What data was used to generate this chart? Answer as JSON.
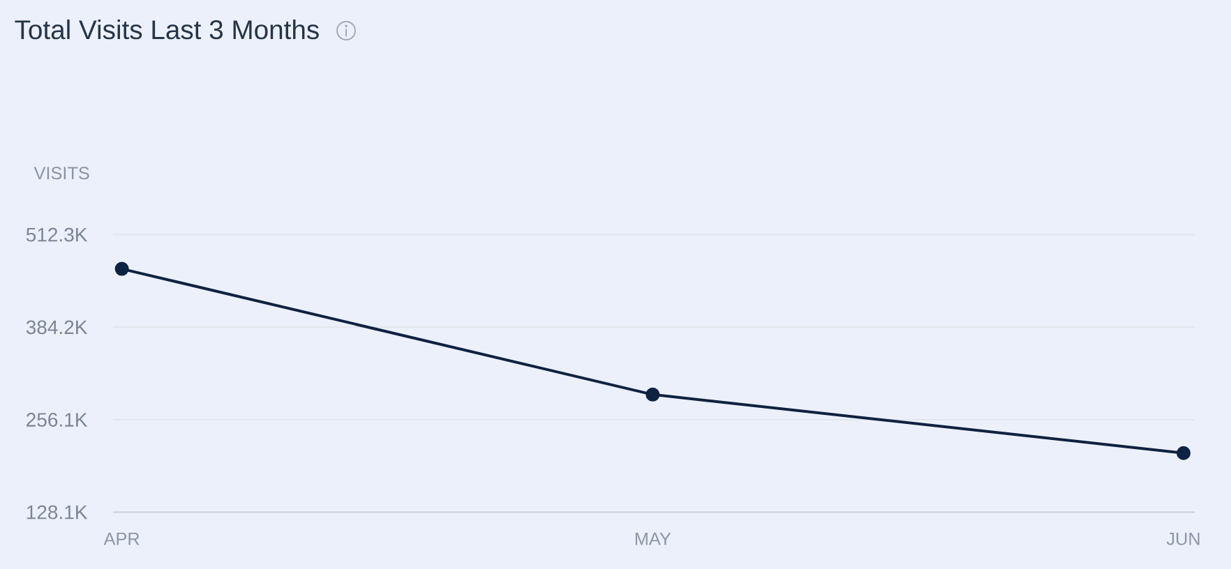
{
  "chart_data": {
    "type": "line",
    "title": "Total Visits Last 3 Months",
    "ylabel": "VISITS",
    "categories": [
      "APR",
      "MAY",
      "JUN"
    ],
    "series": [
      {
        "color": "#0e2241",
        "values": [
          465000,
          291000,
          210000
        ]
      }
    ],
    "ylim": [
      128100,
      512300
    ],
    "yticks": [
      {
        "value": 128100,
        "label": "128.1K"
      },
      {
        "value": 256100,
        "label": "256.1K"
      },
      {
        "value": 384200,
        "label": "384.2K"
      },
      {
        "value": 512300,
        "label": "512.3K"
      }
    ],
    "grid": "y",
    "marker": "circle",
    "line_style": "solid"
  }
}
